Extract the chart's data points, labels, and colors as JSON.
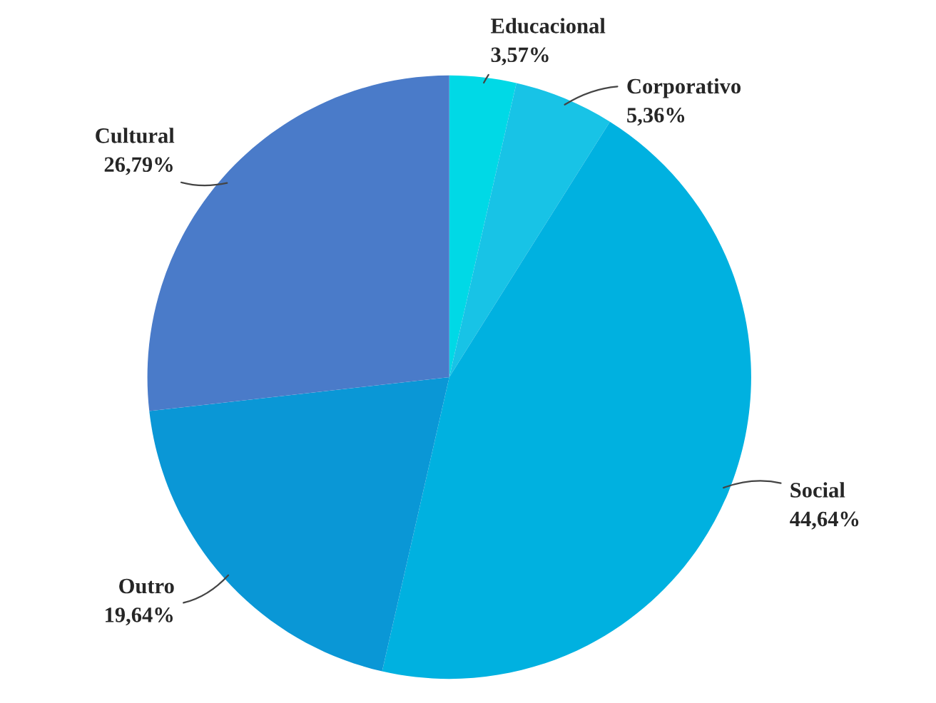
{
  "chart_data": {
    "type": "pie",
    "categories": [
      "Educacional",
      "Corporativo",
      "Social",
      "Outro",
      "Cultural"
    ],
    "values": [
      3.57,
      5.36,
      44.64,
      19.64,
      26.79
    ],
    "value_labels": [
      "3,57%",
      "5,36%",
      "44,64%",
      "19,64%",
      "26,79%"
    ],
    "colors": [
      "#00d9e6",
      "#18c3e6",
      "#00b1e0",
      "#0a97d6",
      "#4a7bc9"
    ]
  }
}
